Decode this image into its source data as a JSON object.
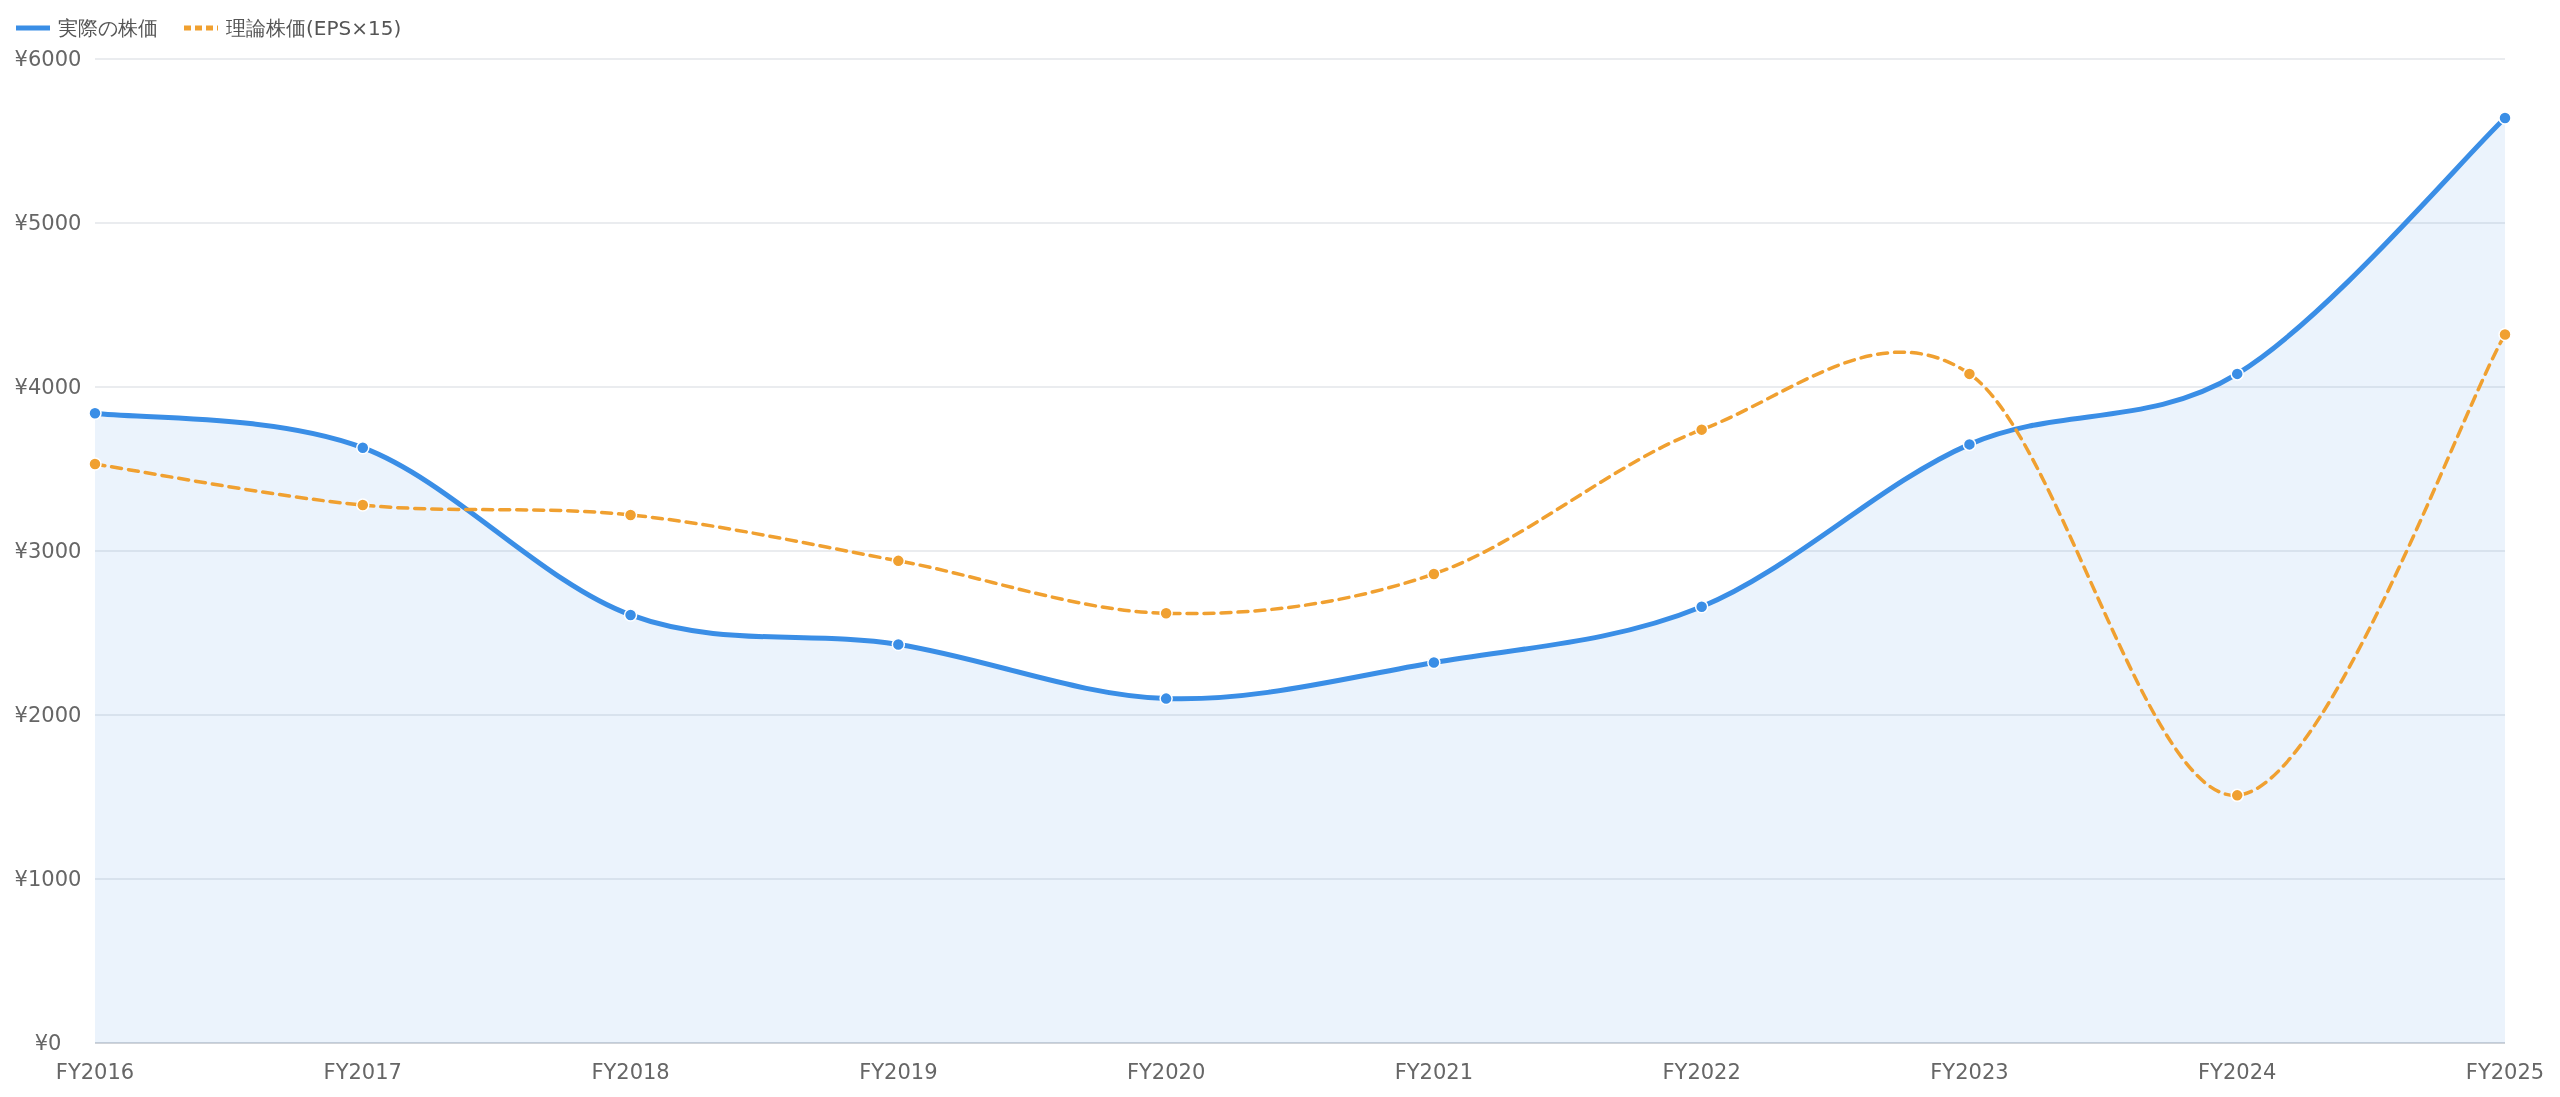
{
  "chart_data": {
    "type": "line",
    "categories": [
      "FY2016",
      "FY2017",
      "FY2018",
      "FY2019",
      "FY2020",
      "FY2021",
      "FY2022",
      "FY2023",
      "FY2024",
      "FY2025"
    ],
    "series": [
      {
        "name": "実際の株価",
        "type": "area",
        "color": "#3a8ee6",
        "line_style": "solid",
        "values": [
          3840,
          3630,
          2610,
          2430,
          2100,
          2320,
          2660,
          3650,
          4080,
          5640
        ]
      },
      {
        "name": "理論株価(EPS×15)",
        "type": "line",
        "color": "#f0a030",
        "line_style": "dashed",
        "values": [
          3530,
          3280,
          3220,
          2940,
          2620,
          2860,
          3740,
          4080,
          1510,
          4320
        ]
      }
    ],
    "ylim": [
      0,
      6000
    ],
    "yticks": [
      {
        "value": 0,
        "label": "¥0"
      },
      {
        "value": 1000,
        "label": "¥1000"
      },
      {
        "value": 2000,
        "label": "¥2000"
      },
      {
        "value": 3000,
        "label": "¥3000"
      },
      {
        "value": 4000,
        "label": "¥4000"
      },
      {
        "value": 5000,
        "label": "¥5000"
      },
      {
        "value": 6000,
        "label": "¥6000"
      }
    ],
    "grid": "y",
    "legend": "top left",
    "marker": "circle"
  }
}
